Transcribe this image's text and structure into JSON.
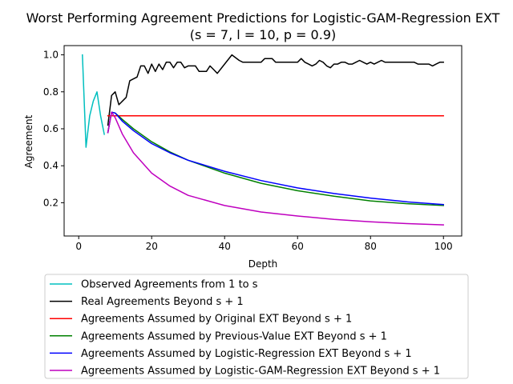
{
  "chart_data": {
    "type": "line",
    "title": "Worst Performing Agreement Predictions for Logistic-GAM-Regression EXT",
    "subtitle": "(s = 7, l = 10, p = 0.9)",
    "xlabel": "Depth",
    "ylabel": "Agreement",
    "xlim": [
      -4,
      105
    ],
    "ylim": [
      0.02,
      1.05
    ],
    "x_ticks": [
      0,
      20,
      40,
      60,
      80,
      100
    ],
    "y_ticks": [
      0.2,
      0.4,
      0.6,
      0.8,
      1.0
    ],
    "x_tick_labels": [
      "0",
      "20",
      "40",
      "60",
      "80",
      "100"
    ],
    "y_tick_labels": [
      "0.2",
      "0.4",
      "0.6",
      "0.8",
      "1.0"
    ],
    "grid": false,
    "legend_position": "bottom",
    "series": [
      {
        "name": "Observed Agreements from 1 to s",
        "color": "#00bfbf",
        "x": [
          1,
          2,
          3,
          4,
          5,
          6,
          7
        ],
        "y": [
          1.0,
          0.5,
          0.67,
          0.75,
          0.8,
          0.67,
          0.57
        ]
      },
      {
        "name": "Real Agreements Beyond s + 1",
        "color": "#000000",
        "x": [
          8,
          9,
          10,
          11,
          12,
          13,
          14,
          15,
          16,
          17,
          18,
          19,
          20,
          21,
          22,
          23,
          24,
          25,
          26,
          27,
          28,
          29,
          30,
          31,
          32,
          33,
          34,
          35,
          36,
          37,
          38,
          40,
          42,
          44,
          45,
          50,
          51,
          52,
          53,
          54,
          55,
          60,
          61,
          62,
          63,
          64,
          65,
          66,
          67,
          68,
          69,
          70,
          71,
          72,
          73,
          74,
          75,
          76,
          77,
          78,
          79,
          80,
          81,
          82,
          83,
          84,
          85,
          92,
          93,
          94,
          95,
          96,
          97,
          98,
          99,
          100
        ],
        "y": [
          0.62,
          0.78,
          0.8,
          0.73,
          0.75,
          0.77,
          0.86,
          0.87,
          0.88,
          0.94,
          0.94,
          0.9,
          0.95,
          0.91,
          0.95,
          0.92,
          0.96,
          0.96,
          0.93,
          0.96,
          0.96,
          0.93,
          0.94,
          0.94,
          0.94,
          0.91,
          0.91,
          0.91,
          0.94,
          0.92,
          0.9,
          0.95,
          1.0,
          0.97,
          0.96,
          0.96,
          0.98,
          0.98,
          0.98,
          0.96,
          0.96,
          0.96,
          0.98,
          0.96,
          0.95,
          0.94,
          0.95,
          0.97,
          0.96,
          0.94,
          0.93,
          0.95,
          0.95,
          0.96,
          0.96,
          0.95,
          0.95,
          0.96,
          0.97,
          0.96,
          0.95,
          0.96,
          0.95,
          0.96,
          0.97,
          0.96,
          0.96,
          0.96,
          0.95,
          0.95,
          0.95,
          0.95,
          0.94,
          0.95,
          0.96,
          0.96
        ]
      },
      {
        "name": "Agreements Assumed by Original EXT Beyond s + 1",
        "color": "#ff0000",
        "x": [
          8,
          100
        ],
        "y": [
          0.67,
          0.67
        ]
      },
      {
        "name": "Agreements Assumed by Previous-Value EXT Beyond s + 1",
        "color": "#008000",
        "x": [
          8,
          9,
          10,
          12,
          15,
          20,
          25,
          30,
          40,
          50,
          60,
          70,
          80,
          90,
          100
        ],
        "y": [
          0.58,
          0.69,
          0.685,
          0.65,
          0.6,
          0.53,
          0.475,
          0.43,
          0.36,
          0.305,
          0.265,
          0.235,
          0.21,
          0.195,
          0.185
        ]
      },
      {
        "name": "Agreements Assumed by Logistic-Regression EXT Beyond s + 1",
        "color": "#0000ff",
        "x": [
          8,
          9,
          10,
          12,
          15,
          20,
          25,
          30,
          40,
          50,
          60,
          70,
          80,
          90,
          100
        ],
        "y": [
          0.58,
          0.69,
          0.685,
          0.64,
          0.59,
          0.52,
          0.47,
          0.43,
          0.37,
          0.32,
          0.28,
          0.25,
          0.225,
          0.205,
          0.19
        ]
      },
      {
        "name": "Agreements Assumed by Logistic-GAM-Regression EXT Beyond s + 1",
        "color": "#bf00bf",
        "x": [
          8,
          9,
          10,
          12,
          15,
          20,
          25,
          30,
          40,
          50,
          60,
          70,
          80,
          90,
          100
        ],
        "y": [
          0.58,
          0.69,
          0.66,
          0.57,
          0.47,
          0.36,
          0.29,
          0.24,
          0.185,
          0.15,
          0.128,
          0.11,
          0.097,
          0.087,
          0.08
        ]
      }
    ]
  }
}
